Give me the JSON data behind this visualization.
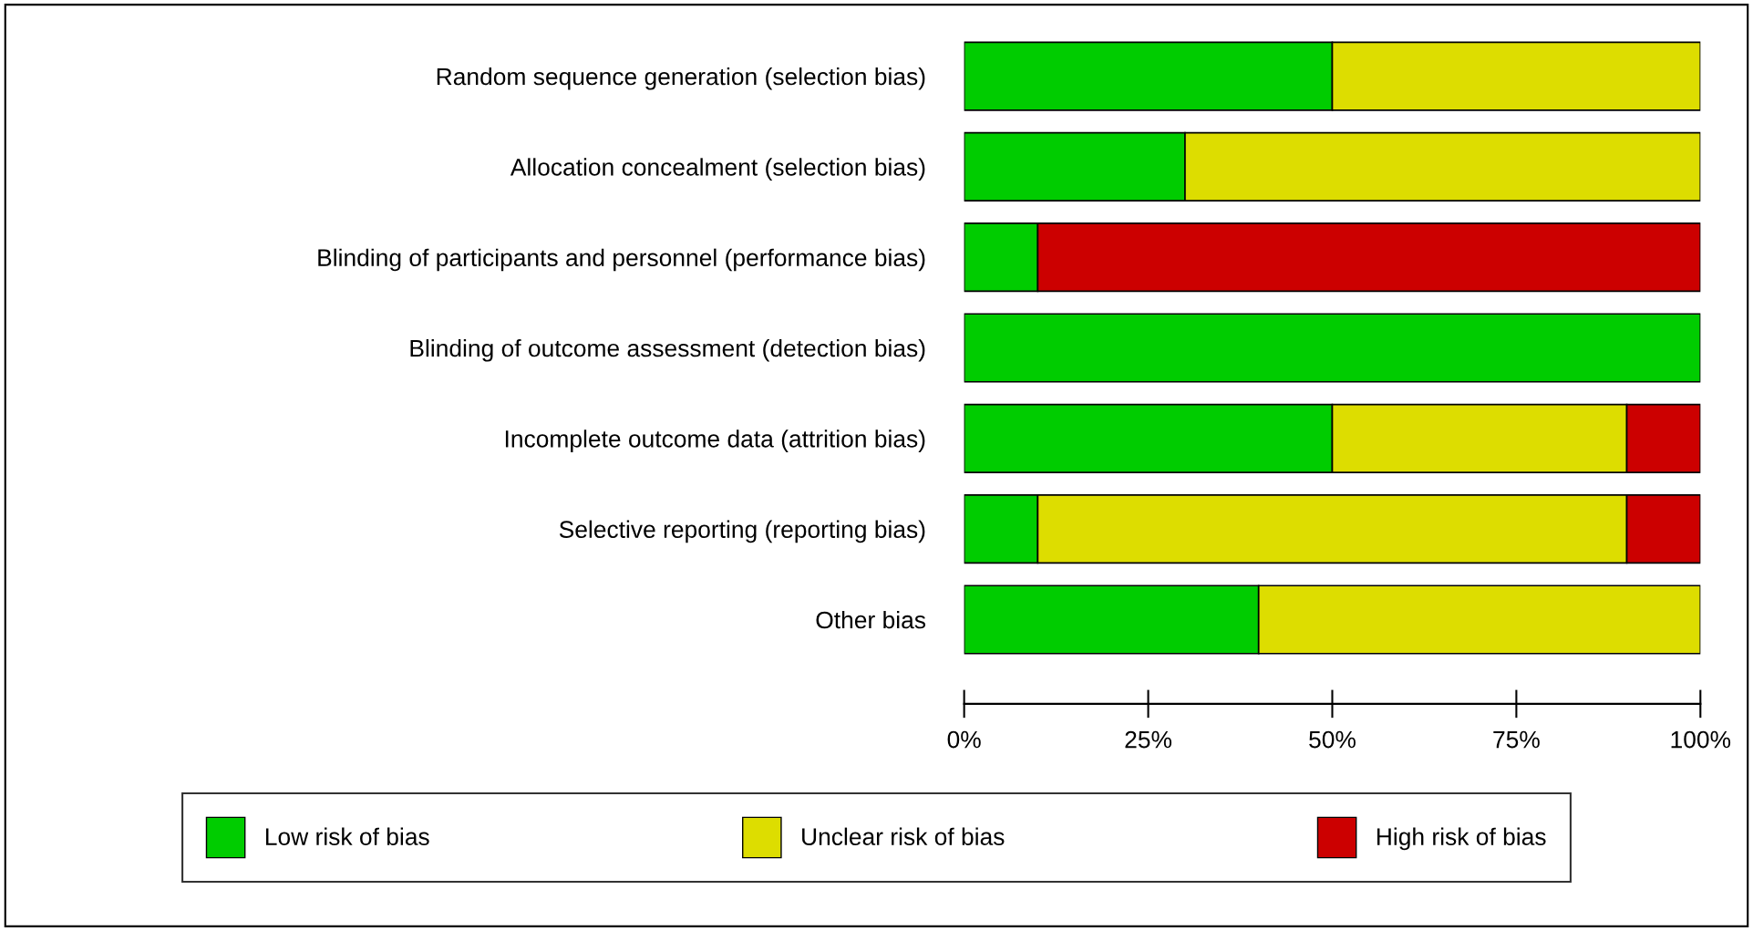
{
  "chart_data": {
    "type": "bar",
    "orientation": "horizontal",
    "stacked": true,
    "categories": [
      "Random sequence generation (selection bias)",
      "Allocation concealment (selection bias)",
      "Blinding of participants and personnel (performance bias)",
      "Blinding of outcome assessment (detection bias)",
      "Incomplete outcome data (attrition bias)",
      "Selective reporting (reporting bias)",
      "Other bias"
    ],
    "series": [
      {
        "name": "Low risk of bias",
        "color": "#00cc00",
        "values": [
          50,
          30,
          10,
          100,
          50,
          10,
          40
        ]
      },
      {
        "name": "Unclear risk of bias",
        "color": "#dddd00",
        "values": [
          50,
          70,
          0,
          0,
          40,
          80,
          60
        ]
      },
      {
        "name": "High risk of bias",
        "color": "#cc0000",
        "values": [
          0,
          0,
          90,
          0,
          10,
          10,
          0
        ]
      }
    ],
    "xlim": [
      0,
      100
    ],
    "xticks": [
      {
        "value": 0,
        "label": "0%"
      },
      {
        "value": 25,
        "label": "25%"
      },
      {
        "value": 50,
        "label": "50%"
      },
      {
        "value": 75,
        "label": "75%"
      },
      {
        "value": 100,
        "label": "100%"
      }
    ],
    "grid": false,
    "legend": "bottom"
  }
}
